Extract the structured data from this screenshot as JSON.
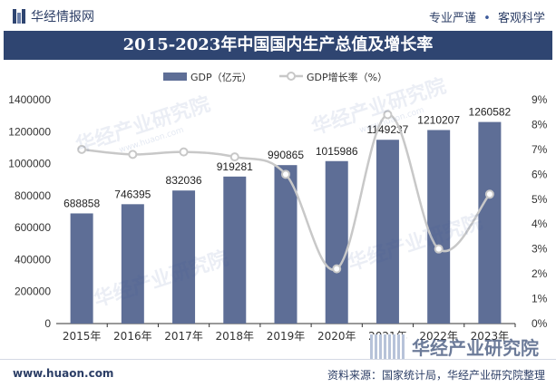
{
  "header": {
    "brand": "华经情报网",
    "slogan_left": "专业严谨",
    "slogan_sep": "•",
    "slogan_right": "客观科学"
  },
  "watermark": "华经产业研究院",
  "watermark_url": "www.huaon.com",
  "corner_brand": "华经产业研究院",
  "footer": {
    "url": "www.huaon.com",
    "source": "资料来源：国家统计局，华经产业研究院整理"
  },
  "colors": {
    "bar": "#5e6e96",
    "line": "#c8c8c8",
    "title_bg": "#2f4571",
    "text": "#2c3e66"
  },
  "chart_data": {
    "type": "bar",
    "title": "2015-2023年中国国内生产总值及增长率",
    "categories": [
      "2015年",
      "2016年",
      "2017年",
      "2018年",
      "2019年",
      "2020年",
      "2021年",
      "2022年",
      "2023年"
    ],
    "series": [
      {
        "name": "GDP（亿元）",
        "type": "bar",
        "axis": "left",
        "values": [
          688858,
          746395,
          832036,
          919281,
          990865,
          1015986,
          1149237,
          1210207,
          1260582
        ]
      },
      {
        "name": "GDP增长率（%）",
        "type": "line",
        "axis": "right",
        "values": [
          7.0,
          6.8,
          6.9,
          6.7,
          6.0,
          2.2,
          8.4,
          3.0,
          5.2
        ]
      }
    ],
    "y_left": {
      "min": 0,
      "max": 1400000,
      "step": 200000,
      "ticks": [
        "0",
        "200000",
        "400000",
        "600000",
        "800000",
        "1000000",
        "1200000",
        "1400000"
      ]
    },
    "y_right": {
      "min": 0,
      "max": 9,
      "step": 1,
      "ticks": [
        "0%",
        "1%",
        "2%",
        "3%",
        "4%",
        "5%",
        "6%",
        "7%",
        "8%",
        "9%"
      ]
    },
    "legend_position": "top-center",
    "grid": false
  }
}
